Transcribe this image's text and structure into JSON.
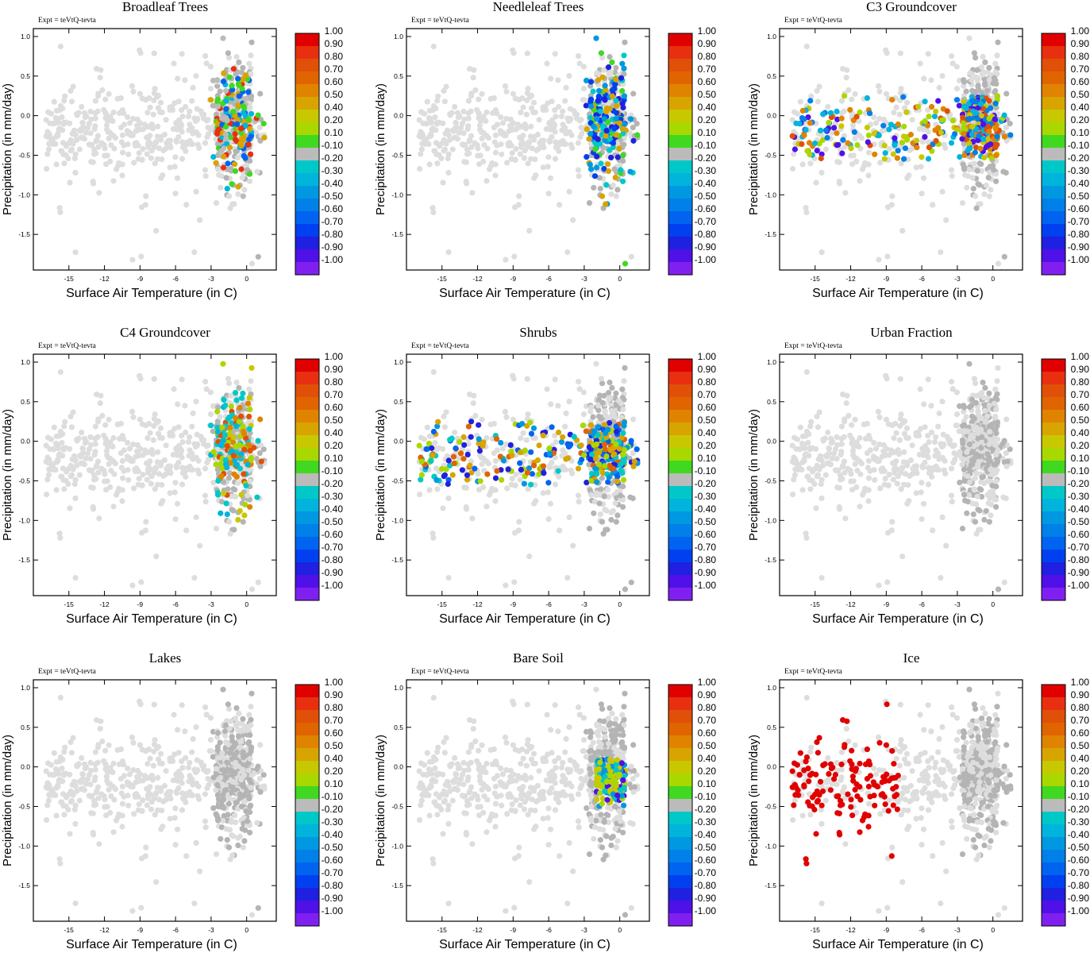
{
  "chart_data": {
    "type": "scatter",
    "experiment": "Expt = teVtQ-tevta",
    "xlabel": "Surface Air Temperature (in C)",
    "ylabel": "Precipitation (in mm/day)",
    "xlim": [
      -18,
      2.5
    ],
    "ylim": [
      -1.95,
      1.1
    ],
    "xticks": [
      -15,
      -12,
      -9,
      -6,
      -3,
      0
    ],
    "yticks": [
      -1.5,
      -1.0,
      -0.5,
      0.0,
      0.5,
      1.0
    ],
    "xtick_labels": [
      "-15",
      "-12",
      "-9",
      "-6",
      "-3",
      "0"
    ],
    "ytick_labels": [
      "-1.5",
      "-1.0",
      "-0.5",
      "0.0",
      "0.5",
      "1.0"
    ],
    "colorbar": {
      "labels": [
        "1.00",
        "0.90",
        "0.80",
        "0.70",
        "0.60",
        "0.50",
        "0.40",
        "0.20",
        "0.10",
        "-0.10",
        "-0.20",
        "-0.30",
        "-0.40",
        "-0.50",
        "-0.60",
        "-0.70",
        "-0.80",
        "-0.90",
        "-1.00"
      ],
      "colors": [
        "#e00000",
        "#e83010",
        "#e05008",
        "#e06400",
        "#e08400",
        "#d8a400",
        "#c8c800",
        "#a8d800",
        "#40d820",
        "#bbbbbb",
        "#00c8c8",
        "#00b4dc",
        "#0098e0",
        "#0080e8",
        "#0064f0",
        "#0040f0",
        "#2020e0",
        "#5010e8",
        "#8020f0"
      ]
    },
    "panels": [
      {
        "title": "Broadleaf Trees",
        "pattern": "spike",
        "levels": [
          0.9,
          0.45,
          0.15,
          -0.15,
          -0.35,
          -0.55
        ],
        "grid": false,
        "legend": "colorbar-right"
      },
      {
        "title": "Needleleaf Trees",
        "pattern": "spike",
        "levels": [
          0.45,
          0.15,
          -0.25,
          -0.45,
          -0.65,
          -0.85
        ],
        "grid": false,
        "legend": "colorbar-right"
      },
      {
        "title": "C3 Groundcover",
        "pattern": "band",
        "levels": [
          0.8,
          0.6,
          0.4,
          0.2,
          -0.3,
          -0.5,
          -0.9
        ],
        "grid": false,
        "legend": "colorbar-right"
      },
      {
        "title": "C4 Groundcover",
        "pattern": "spike",
        "levels": [
          0.8,
          0.6,
          0.4,
          0.2,
          -0.2,
          -0.3
        ],
        "grid": false,
        "legend": "colorbar-right"
      },
      {
        "title": "Shrubs",
        "pattern": "band",
        "levels": [
          0.7,
          0.5,
          0.2,
          -0.2,
          -0.4,
          -0.6,
          -0.8
        ],
        "grid": false,
        "legend": "colorbar-right"
      },
      {
        "title": "Urban Fraction",
        "pattern": "none",
        "levels": [],
        "grid": false,
        "legend": "colorbar-right"
      },
      {
        "title": "Lakes",
        "pattern": "none",
        "levels": [],
        "grid": false,
        "legend": "colorbar-right"
      },
      {
        "title": "Bare Soil",
        "pattern": "cluster",
        "levels": [
          0.4,
          0.2,
          -0.2,
          -0.4,
          -0.9
        ],
        "grid": false,
        "legend": "colorbar-right"
      },
      {
        "title": "Ice",
        "pattern": "cold",
        "levels": [
          1.0
        ],
        "grid": false,
        "legend": "colorbar-right"
      }
    ]
  }
}
